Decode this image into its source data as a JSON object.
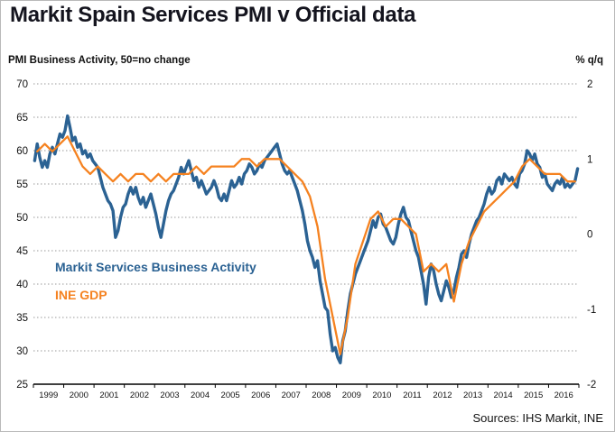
{
  "page": {
    "title": "Markit Spain Services PMI v Official data",
    "source_note": "Sources: IHS Markit, INE"
  },
  "chart_data": {
    "type": "line",
    "title": "Markit Spain Services PMI v Official data",
    "left_axis": {
      "label": "PMI Business Activity, 50=no change",
      "min": 25,
      "max": 70,
      "tick_step": 5
    },
    "right_axis": {
      "label": "% q/q",
      "min": -2,
      "max": 2,
      "tick_step": 1
    },
    "x_axis": {
      "min_year": 1999,
      "max_year": 2017,
      "tick_labels": [
        "1999",
        "2000",
        "2001",
        "2002",
        "2003",
        "2004",
        "2005",
        "2006",
        "2007",
        "2008",
        "2009",
        "2010",
        "2011",
        "2012",
        "2013",
        "2014",
        "2015",
        "2016"
      ]
    },
    "grid": "horizontal-dotted",
    "legend": "in-plot-labels",
    "source_note": "Sources: IHS Markit, INE",
    "series": [
      {
        "name": "Markit Services Business Activity",
        "axis": "left",
        "color": "#2B6293",
        "frequency": "monthly",
        "start_year": 1999,
        "values": [
          58.5,
          61.0,
          59.0,
          57.5,
          58.5,
          57.5,
          59.5,
          60.5,
          59.5,
          61.0,
          62.5,
          62.0,
          63.0,
          65.2,
          63.5,
          61.5,
          62.0,
          60.5,
          61.0,
          59.5,
          60.0,
          59.0,
          59.5,
          58.5,
          58.0,
          57.5,
          56.0,
          54.5,
          53.5,
          52.5,
          52.0,
          51.0,
          47.0,
          48.0,
          50.0,
          51.5,
          52.0,
          53.5,
          54.5,
          53.5,
          54.5,
          53.0,
          52.0,
          53.0,
          51.5,
          52.5,
          53.5,
          52.0,
          50.5,
          48.5,
          47.0,
          49.0,
          51.0,
          52.5,
          53.5,
          54.0,
          55.0,
          56.0,
          57.5,
          56.5,
          57.5,
          58.5,
          57.0,
          55.5,
          56.0,
          54.5,
          55.5,
          54.5,
          53.5,
          54.0,
          54.5,
          55.5,
          54.5,
          53.0,
          52.5,
          53.5,
          52.5,
          54.0,
          55.5,
          54.5,
          55.0,
          56.0,
          55.0,
          56.5,
          57.0,
          58.0,
          57.5,
          56.5,
          57.0,
          58.0,
          57.5,
          58.5,
          59.0,
          59.5,
          60.0,
          60.5,
          61.0,
          59.5,
          58.0,
          57.0,
          56.5,
          57.0,
          56.0,
          55.0,
          54.0,
          52.5,
          51.0,
          49.0,
          46.5,
          45.0,
          44.0,
          42.5,
          43.5,
          40.5,
          38.5,
          36.5,
          36.0,
          32.5,
          30.0,
          30.5,
          29.0,
          28.2,
          31.5,
          33.0,
          36.0,
          38.5,
          40.0,
          41.5,
          42.5,
          43.5,
          44.5,
          45.5,
          46.5,
          48.0,
          49.5,
          48.5,
          50.0,
          50.5,
          49.0,
          48.5,
          47.5,
          46.5,
          46.0,
          47.0,
          49.0,
          50.5,
          51.5,
          50.0,
          49.5,
          48.0,
          46.5,
          45.0,
          44.0,
          42.0,
          40.0,
          37.0,
          41.0,
          43.0,
          42.0,
          40.0,
          38.5,
          37.5,
          39.0,
          40.5,
          39.5,
          38.0,
          39.0,
          41.0,
          42.5,
          44.5,
          45.0,
          44.0,
          46.0,
          47.5,
          48.5,
          49.5,
          50.0,
          51.0,
          52.0,
          53.5,
          54.5,
          53.5,
          54.0,
          55.5,
          56.0,
          55.0,
          56.5,
          56.0,
          55.5,
          56.0,
          55.0,
          54.5,
          56.5,
          57.0,
          58.0,
          60.0,
          59.5,
          58.5,
          59.5,
          58.0,
          57.5,
          56.0,
          56.5,
          55.0,
          54.5,
          54.0,
          55.0,
          55.5,
          55.0,
          56.0,
          54.5,
          55.0,
          54.5,
          55.0,
          55.5,
          57.3
        ]
      },
      {
        "name": "INE GDP",
        "axis": "right",
        "color": "#F58220",
        "frequency": "quarterly",
        "start_year": 1999,
        "values": [
          1.1,
          1.2,
          1.1,
          1.2,
          1.3,
          1.1,
          0.9,
          0.8,
          0.9,
          0.8,
          0.7,
          0.8,
          0.7,
          0.8,
          0.8,
          0.7,
          0.8,
          0.7,
          0.8,
          0.8,
          0.8,
          0.9,
          0.8,
          0.9,
          0.9,
          0.9,
          0.9,
          1.0,
          1.0,
          0.9,
          1.0,
          1.0,
          1.0,
          0.9,
          0.8,
          0.7,
          0.5,
          0.1,
          -0.6,
          -1.1,
          -1.6,
          -1.1,
          -0.4,
          -0.1,
          0.2,
          0.3,
          0.1,
          0.2,
          0.2,
          0.1,
          0.0,
          -0.5,
          -0.4,
          -0.5,
          -0.4,
          -0.9,
          -0.4,
          -0.1,
          0.1,
          0.3,
          0.4,
          0.5,
          0.6,
          0.7,
          0.9,
          1.0,
          0.9,
          0.8,
          0.8,
          0.8,
          0.7,
          0.7
        ]
      }
    ]
  }
}
